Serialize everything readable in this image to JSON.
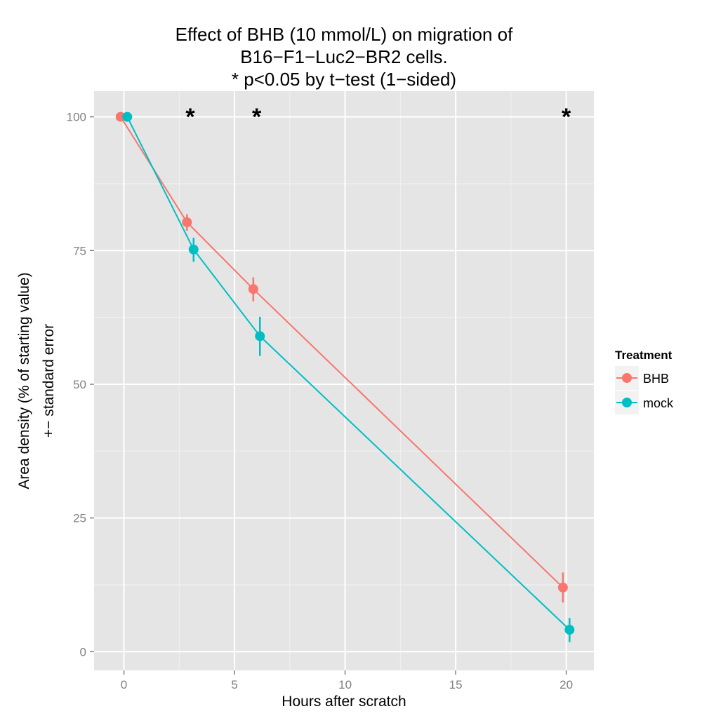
{
  "chart_data": {
    "type": "line",
    "title_lines": [
      "Effect of BHB (10 mmol/L) on migration of",
      "B16−F1−Luc2−BR2 cells.",
      "* p<0.05 by t−test (1−sided)"
    ],
    "xlabel": "Hours after scratch",
    "ylabel_lines": [
      "Area density (% of starting value)",
      "+− standard error"
    ],
    "xlim": [
      -1.35,
      21.25
    ],
    "ylim": [
      -3.5,
      104.8
    ],
    "x_ticks": [
      0,
      5,
      10,
      15,
      20
    ],
    "y_ticks": [
      0,
      25,
      50,
      75,
      100
    ],
    "grid": true,
    "legend": {
      "title": "Treatment",
      "position": "right"
    },
    "series": [
      {
        "name": "BHB",
        "color": "#F8766D",
        "points": [
          {
            "x": -0.15,
            "y": 100,
            "lo": 100,
            "hi": 100
          },
          {
            "x": 2.85,
            "y": 80.3,
            "lo": 78.7,
            "hi": 81.8
          },
          {
            "x": 5.85,
            "y": 67.8,
            "lo": 65.5,
            "hi": 70.0
          },
          {
            "x": 19.85,
            "y": 12.0,
            "lo": 9.2,
            "hi": 14.8
          }
        ]
      },
      {
        "name": "mock",
        "color": "#00BFC4",
        "points": [
          {
            "x": 0.15,
            "y": 100,
            "lo": 100,
            "hi": 100
          },
          {
            "x": 3.15,
            "y": 75.2,
            "lo": 72.9,
            "hi": 77.4
          },
          {
            "x": 6.15,
            "y": 59.0,
            "lo": 55.3,
            "hi": 62.6
          },
          {
            "x": 20.15,
            "y": 4.1,
            "lo": 1.8,
            "hi": 6.3
          }
        ]
      }
    ],
    "annotations": [
      {
        "text": "*",
        "x": 3,
        "y": 101.5
      },
      {
        "text": "*",
        "x": 6,
        "y": 101.5
      },
      {
        "text": "*",
        "x": 20,
        "y": 101.5
      }
    ]
  }
}
